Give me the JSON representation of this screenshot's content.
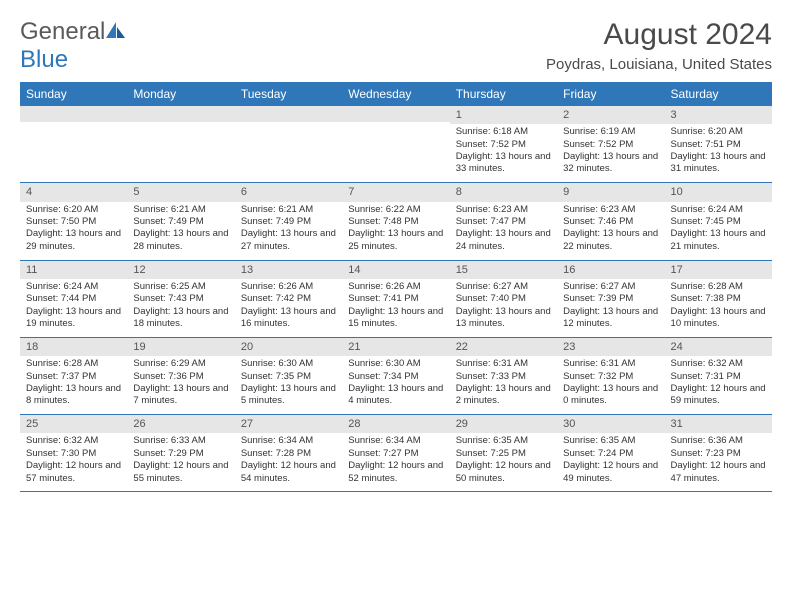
{
  "brand": {
    "part1": "General",
    "part2": "Blue"
  },
  "title": "August 2024",
  "location": "Poydras, Louisiana, United States",
  "colors": {
    "header_bg": "#2f77b8",
    "header_fg": "#ffffff",
    "band_bg": "#e6e6e6",
    "border": "#2f77b8",
    "text": "#333333",
    "title_text": "#4a4a4a"
  },
  "day_headers": [
    "Sunday",
    "Monday",
    "Tuesday",
    "Wednesday",
    "Thursday",
    "Friday",
    "Saturday"
  ],
  "weeks": [
    [
      {
        "day": "",
        "sunrise": "",
        "sunset": "",
        "daylight": ""
      },
      {
        "day": "",
        "sunrise": "",
        "sunset": "",
        "daylight": ""
      },
      {
        "day": "",
        "sunrise": "",
        "sunset": "",
        "daylight": ""
      },
      {
        "day": "",
        "sunrise": "",
        "sunset": "",
        "daylight": ""
      },
      {
        "day": "1",
        "sunrise": "Sunrise: 6:18 AM",
        "sunset": "Sunset: 7:52 PM",
        "daylight": "Daylight: 13 hours and 33 minutes."
      },
      {
        "day": "2",
        "sunrise": "Sunrise: 6:19 AM",
        "sunset": "Sunset: 7:52 PM",
        "daylight": "Daylight: 13 hours and 32 minutes."
      },
      {
        "day": "3",
        "sunrise": "Sunrise: 6:20 AM",
        "sunset": "Sunset: 7:51 PM",
        "daylight": "Daylight: 13 hours and 31 minutes."
      }
    ],
    [
      {
        "day": "4",
        "sunrise": "Sunrise: 6:20 AM",
        "sunset": "Sunset: 7:50 PM",
        "daylight": "Daylight: 13 hours and 29 minutes."
      },
      {
        "day": "5",
        "sunrise": "Sunrise: 6:21 AM",
        "sunset": "Sunset: 7:49 PM",
        "daylight": "Daylight: 13 hours and 28 minutes."
      },
      {
        "day": "6",
        "sunrise": "Sunrise: 6:21 AM",
        "sunset": "Sunset: 7:49 PM",
        "daylight": "Daylight: 13 hours and 27 minutes."
      },
      {
        "day": "7",
        "sunrise": "Sunrise: 6:22 AM",
        "sunset": "Sunset: 7:48 PM",
        "daylight": "Daylight: 13 hours and 25 minutes."
      },
      {
        "day": "8",
        "sunrise": "Sunrise: 6:23 AM",
        "sunset": "Sunset: 7:47 PM",
        "daylight": "Daylight: 13 hours and 24 minutes."
      },
      {
        "day": "9",
        "sunrise": "Sunrise: 6:23 AM",
        "sunset": "Sunset: 7:46 PM",
        "daylight": "Daylight: 13 hours and 22 minutes."
      },
      {
        "day": "10",
        "sunrise": "Sunrise: 6:24 AM",
        "sunset": "Sunset: 7:45 PM",
        "daylight": "Daylight: 13 hours and 21 minutes."
      }
    ],
    [
      {
        "day": "11",
        "sunrise": "Sunrise: 6:24 AM",
        "sunset": "Sunset: 7:44 PM",
        "daylight": "Daylight: 13 hours and 19 minutes."
      },
      {
        "day": "12",
        "sunrise": "Sunrise: 6:25 AM",
        "sunset": "Sunset: 7:43 PM",
        "daylight": "Daylight: 13 hours and 18 minutes."
      },
      {
        "day": "13",
        "sunrise": "Sunrise: 6:26 AM",
        "sunset": "Sunset: 7:42 PM",
        "daylight": "Daylight: 13 hours and 16 minutes."
      },
      {
        "day": "14",
        "sunrise": "Sunrise: 6:26 AM",
        "sunset": "Sunset: 7:41 PM",
        "daylight": "Daylight: 13 hours and 15 minutes."
      },
      {
        "day": "15",
        "sunrise": "Sunrise: 6:27 AM",
        "sunset": "Sunset: 7:40 PM",
        "daylight": "Daylight: 13 hours and 13 minutes."
      },
      {
        "day": "16",
        "sunrise": "Sunrise: 6:27 AM",
        "sunset": "Sunset: 7:39 PM",
        "daylight": "Daylight: 13 hours and 12 minutes."
      },
      {
        "day": "17",
        "sunrise": "Sunrise: 6:28 AM",
        "sunset": "Sunset: 7:38 PM",
        "daylight": "Daylight: 13 hours and 10 minutes."
      }
    ],
    [
      {
        "day": "18",
        "sunrise": "Sunrise: 6:28 AM",
        "sunset": "Sunset: 7:37 PM",
        "daylight": "Daylight: 13 hours and 8 minutes."
      },
      {
        "day": "19",
        "sunrise": "Sunrise: 6:29 AM",
        "sunset": "Sunset: 7:36 PM",
        "daylight": "Daylight: 13 hours and 7 minutes."
      },
      {
        "day": "20",
        "sunrise": "Sunrise: 6:30 AM",
        "sunset": "Sunset: 7:35 PM",
        "daylight": "Daylight: 13 hours and 5 minutes."
      },
      {
        "day": "21",
        "sunrise": "Sunrise: 6:30 AM",
        "sunset": "Sunset: 7:34 PM",
        "daylight": "Daylight: 13 hours and 4 minutes."
      },
      {
        "day": "22",
        "sunrise": "Sunrise: 6:31 AM",
        "sunset": "Sunset: 7:33 PM",
        "daylight": "Daylight: 13 hours and 2 minutes."
      },
      {
        "day": "23",
        "sunrise": "Sunrise: 6:31 AM",
        "sunset": "Sunset: 7:32 PM",
        "daylight": "Daylight: 13 hours and 0 minutes."
      },
      {
        "day": "24",
        "sunrise": "Sunrise: 6:32 AM",
        "sunset": "Sunset: 7:31 PM",
        "daylight": "Daylight: 12 hours and 59 minutes."
      }
    ],
    [
      {
        "day": "25",
        "sunrise": "Sunrise: 6:32 AM",
        "sunset": "Sunset: 7:30 PM",
        "daylight": "Daylight: 12 hours and 57 minutes."
      },
      {
        "day": "26",
        "sunrise": "Sunrise: 6:33 AM",
        "sunset": "Sunset: 7:29 PM",
        "daylight": "Daylight: 12 hours and 55 minutes."
      },
      {
        "day": "27",
        "sunrise": "Sunrise: 6:34 AM",
        "sunset": "Sunset: 7:28 PM",
        "daylight": "Daylight: 12 hours and 54 minutes."
      },
      {
        "day": "28",
        "sunrise": "Sunrise: 6:34 AM",
        "sunset": "Sunset: 7:27 PM",
        "daylight": "Daylight: 12 hours and 52 minutes."
      },
      {
        "day": "29",
        "sunrise": "Sunrise: 6:35 AM",
        "sunset": "Sunset: 7:25 PM",
        "daylight": "Daylight: 12 hours and 50 minutes."
      },
      {
        "day": "30",
        "sunrise": "Sunrise: 6:35 AM",
        "sunset": "Sunset: 7:24 PM",
        "daylight": "Daylight: 12 hours and 49 minutes."
      },
      {
        "day": "31",
        "sunrise": "Sunrise: 6:36 AM",
        "sunset": "Sunset: 7:23 PM",
        "daylight": "Daylight: 12 hours and 47 minutes."
      }
    ]
  ]
}
